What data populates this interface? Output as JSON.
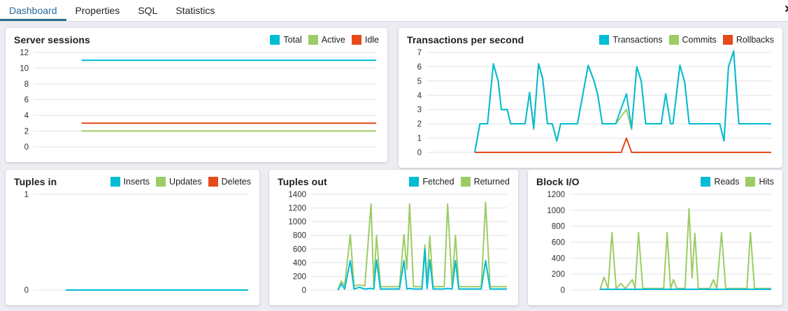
{
  "tabs": {
    "items": [
      {
        "label": "Dashboard",
        "active": true
      },
      {
        "label": "Properties",
        "active": false
      },
      {
        "label": "SQL",
        "active": false
      },
      {
        "label": "Statistics",
        "active": false
      }
    ]
  },
  "close": {
    "glyph": "✕"
  },
  "colors": {
    "cyan": "#00bcd4",
    "green": "#9ccc65",
    "red": "#e64a19",
    "grid": "#e0e2ec",
    "axis_text": "#2e2e2e",
    "tab_active": "#2e6c91",
    "page_bg": "#ebedf2",
    "panel_bg": "#ffffff"
  },
  "chart_data": [
    {
      "type": "line",
      "title": "Server sessions",
      "ylim": [
        0,
        12
      ],
      "yticks": [
        0,
        2,
        4,
        6,
        8,
        10,
        12
      ],
      "grid": true,
      "legend_position": "top-right",
      "series": [
        {
          "name": "Total",
          "color": "cyan",
          "points": [
            [
              14,
              11
            ],
            [
              100,
              11
            ]
          ]
        },
        {
          "name": "Active",
          "color": "green",
          "points": [
            [
              14,
              2
            ],
            [
              100,
              2
            ]
          ]
        },
        {
          "name": "Idle",
          "color": "red",
          "points": [
            [
              14,
              3
            ],
            [
              100,
              3
            ]
          ]
        }
      ]
    },
    {
      "type": "line",
      "title": "Transactions per second",
      "ylim": [
        0,
        7
      ],
      "yticks": [
        0,
        1,
        2,
        3,
        4,
        5,
        6,
        7
      ],
      "grid": true,
      "legend_position": "top-right",
      "series": [
        {
          "name": "Transactions",
          "color": "cyan",
          "points": [
            [
              14,
              0
            ],
            [
              15.5,
              2
            ],
            [
              17.7,
              2
            ],
            [
              19.4,
              6.2
            ],
            [
              20.8,
              5
            ],
            [
              21.7,
              3
            ],
            [
              23.4,
              3
            ],
            [
              24.4,
              2
            ],
            [
              28.6,
              2
            ],
            [
              29.9,
              4.2
            ],
            [
              31.1,
              1.7
            ],
            [
              32.5,
              6.2
            ],
            [
              33.7,
              5.2
            ],
            [
              35.1,
              2
            ],
            [
              36.5,
              2
            ],
            [
              37.8,
              0.8
            ],
            [
              38.9,
              2
            ],
            [
              43.8,
              2
            ],
            [
              46.9,
              6.1
            ],
            [
              48.6,
              5
            ],
            [
              49.7,
              4
            ],
            [
              51,
              2
            ],
            [
              54.9,
              2
            ],
            [
              58,
              4.1
            ],
            [
              59.5,
              1.7
            ],
            [
              61,
              6
            ],
            [
              62.3,
              5
            ],
            [
              63.6,
              2
            ],
            [
              68.1,
              2
            ],
            [
              69.4,
              4.1
            ],
            [
              70.8,
              2
            ],
            [
              71.5,
              2
            ],
            [
              73.5,
              6.1
            ],
            [
              74.9,
              4.9
            ],
            [
              76.2,
              2
            ],
            [
              85.1,
              2
            ],
            [
              86.3,
              0.8
            ],
            [
              87.6,
              6
            ],
            [
              89.1,
              7.1
            ],
            [
              90.6,
              2
            ],
            [
              100,
              2
            ]
          ]
        },
        {
          "name": "Commits",
          "color": "green",
          "points": [
            [
              14,
              0
            ],
            [
              15.5,
              2
            ],
            [
              17.7,
              2
            ],
            [
              19.4,
              6.2
            ],
            [
              20.8,
              5
            ],
            [
              21.7,
              3
            ],
            [
              23.4,
              3
            ],
            [
              24.4,
              2
            ],
            [
              28.6,
              2
            ],
            [
              29.9,
              4.2
            ],
            [
              31.1,
              1.6
            ],
            [
              32.5,
              6.2
            ],
            [
              33.7,
              5.2
            ],
            [
              35.1,
              2
            ],
            [
              36.5,
              2
            ],
            [
              37.8,
              0.8
            ],
            [
              38.9,
              2
            ],
            [
              43.8,
              2
            ],
            [
              46.9,
              6.1
            ],
            [
              48.6,
              5
            ],
            [
              49.7,
              4
            ],
            [
              51,
              2
            ],
            [
              54.9,
              2
            ],
            [
              58,
              3
            ],
            [
              59.5,
              1.6
            ],
            [
              61,
              6
            ],
            [
              62.3,
              5
            ],
            [
              63.6,
              2
            ],
            [
              68.1,
              2
            ],
            [
              69.4,
              4.1
            ],
            [
              70.8,
              2
            ],
            [
              71.5,
              2
            ],
            [
              73.5,
              6.1
            ],
            [
              74.9,
              4.9
            ],
            [
              76.2,
              2
            ],
            [
              85.1,
              2
            ],
            [
              86.3,
              0.8
            ],
            [
              87.6,
              6
            ],
            [
              89.1,
              7.1
            ],
            [
              89.9,
              4.2
            ],
            [
              90.6,
              2
            ],
            [
              100,
              2
            ]
          ]
        },
        {
          "name": "Rollbacks",
          "color": "red",
          "points": [
            [
              14,
              0
            ],
            [
              56.5,
              0
            ],
            [
              58,
              1
            ],
            [
              59.5,
              0
            ],
            [
              100,
              0
            ]
          ]
        }
      ]
    },
    {
      "type": "line",
      "title": "Tuples in",
      "ylim": [
        0,
        1
      ],
      "yticks": [
        0,
        1
      ],
      "grid": true,
      "legend_position": "top-right",
      "series": [
        {
          "name": "Inserts",
          "color": "cyan",
          "points": [
            [
              15,
              0
            ],
            [
              100,
              0
            ]
          ]
        },
        {
          "name": "Updates",
          "color": "green",
          "points": [
            [
              15,
              0
            ],
            [
              100,
              0
            ]
          ]
        },
        {
          "name": "Deletes",
          "color": "red",
          "points": [
            [
              15,
              0
            ],
            [
              100,
              0
            ]
          ]
        }
      ]
    },
    {
      "type": "line",
      "title": "Tuples out",
      "ylim": [
        0,
        1400
      ],
      "yticks": [
        0,
        200,
        400,
        600,
        800,
        1000,
        1200,
        1400
      ],
      "grid": true,
      "legend_position": "top-right",
      "series": [
        {
          "name": "Fetched",
          "color": "cyan",
          "points": [
            [
              13.7,
              0
            ],
            [
              15.4,
              90
            ],
            [
              17.1,
              15
            ],
            [
              20,
              430
            ],
            [
              21.9,
              15
            ],
            [
              24.6,
              40
            ],
            [
              27.4,
              15
            ],
            [
              30.6,
              25
            ],
            [
              32,
              15
            ],
            [
              33.4,
              440
            ],
            [
              35.4,
              15
            ],
            [
              45.1,
              15
            ],
            [
              47.4,
              430
            ],
            [
              48.9,
              15
            ],
            [
              50.3,
              25
            ],
            [
              52.3,
              15
            ],
            [
              56.6,
              15
            ],
            [
              58.1,
              600
            ],
            [
              59.2,
              20
            ],
            [
              60.6,
              440
            ],
            [
              62.3,
              15
            ],
            [
              68,
              15
            ],
            [
              69.7,
              25
            ],
            [
              72,
              15
            ],
            [
              73.7,
              430
            ],
            [
              75.4,
              15
            ],
            [
              86.9,
              15
            ],
            [
              89.1,
              430
            ],
            [
              91.4,
              15
            ],
            [
              100,
              15
            ]
          ]
        },
        {
          "name": "Returned",
          "color": "green",
          "points": [
            [
              13.7,
              0
            ],
            [
              15.4,
              130
            ],
            [
              17.1,
              60
            ],
            [
              20,
              810
            ],
            [
              21.9,
              60
            ],
            [
              24.6,
              75
            ],
            [
              27.4,
              60
            ],
            [
              30.6,
              1260
            ],
            [
              32,
              50
            ],
            [
              33.4,
              800
            ],
            [
              35.4,
              50
            ],
            [
              45.1,
              50
            ],
            [
              47.4,
              810
            ],
            [
              48.9,
              300
            ],
            [
              50.3,
              1260
            ],
            [
              52.3,
              50
            ],
            [
              56.6,
              50
            ],
            [
              58.1,
              660
            ],
            [
              59.2,
              100
            ],
            [
              60.6,
              790
            ],
            [
              62.3,
              50
            ],
            [
              68,
              50
            ],
            [
              69.7,
              1260
            ],
            [
              72,
              60
            ],
            [
              73.7,
              800
            ],
            [
              75.4,
              50
            ],
            [
              86.9,
              50
            ],
            [
              89.1,
              1280
            ],
            [
              91.4,
              50
            ],
            [
              100,
              50
            ]
          ]
        }
      ]
    },
    {
      "type": "line",
      "title": "Block I/O",
      "ylim": [
        0,
        1200
      ],
      "yticks": [
        0,
        200,
        400,
        600,
        800,
        1000,
        1200
      ],
      "grid": true,
      "legend_position": "top-right",
      "series": [
        {
          "name": "Reads",
          "color": "cyan",
          "points": [
            [
              15,
              10
            ],
            [
              100,
              10
            ]
          ]
        },
        {
          "name": "Hits",
          "color": "green",
          "points": [
            [
              14.9,
              0
            ],
            [
              17,
              160
            ],
            [
              19,
              20
            ],
            [
              20.9,
              720
            ],
            [
              23,
              20
            ],
            [
              25.3,
              80
            ],
            [
              27.6,
              20
            ],
            [
              31,
              130
            ],
            [
              32.4,
              20
            ],
            [
              34.1,
              720
            ],
            [
              36.2,
              20
            ],
            [
              46.6,
              20
            ],
            [
              48.3,
              720
            ],
            [
              50,
              20
            ],
            [
              51.5,
              130
            ],
            [
              53.1,
              20
            ],
            [
              57.2,
              20
            ],
            [
              59.2,
              1020
            ],
            [
              60.7,
              150
            ],
            [
              62.1,
              710
            ],
            [
              63.8,
              20
            ],
            [
              69.5,
              20
            ],
            [
              71.3,
              130
            ],
            [
              73,
              20
            ],
            [
              75.3,
              720
            ],
            [
              77.4,
              20
            ],
            [
              87.9,
              20
            ],
            [
              89.7,
              720
            ],
            [
              91.7,
              20
            ],
            [
              100,
              20
            ]
          ]
        }
      ]
    }
  ]
}
